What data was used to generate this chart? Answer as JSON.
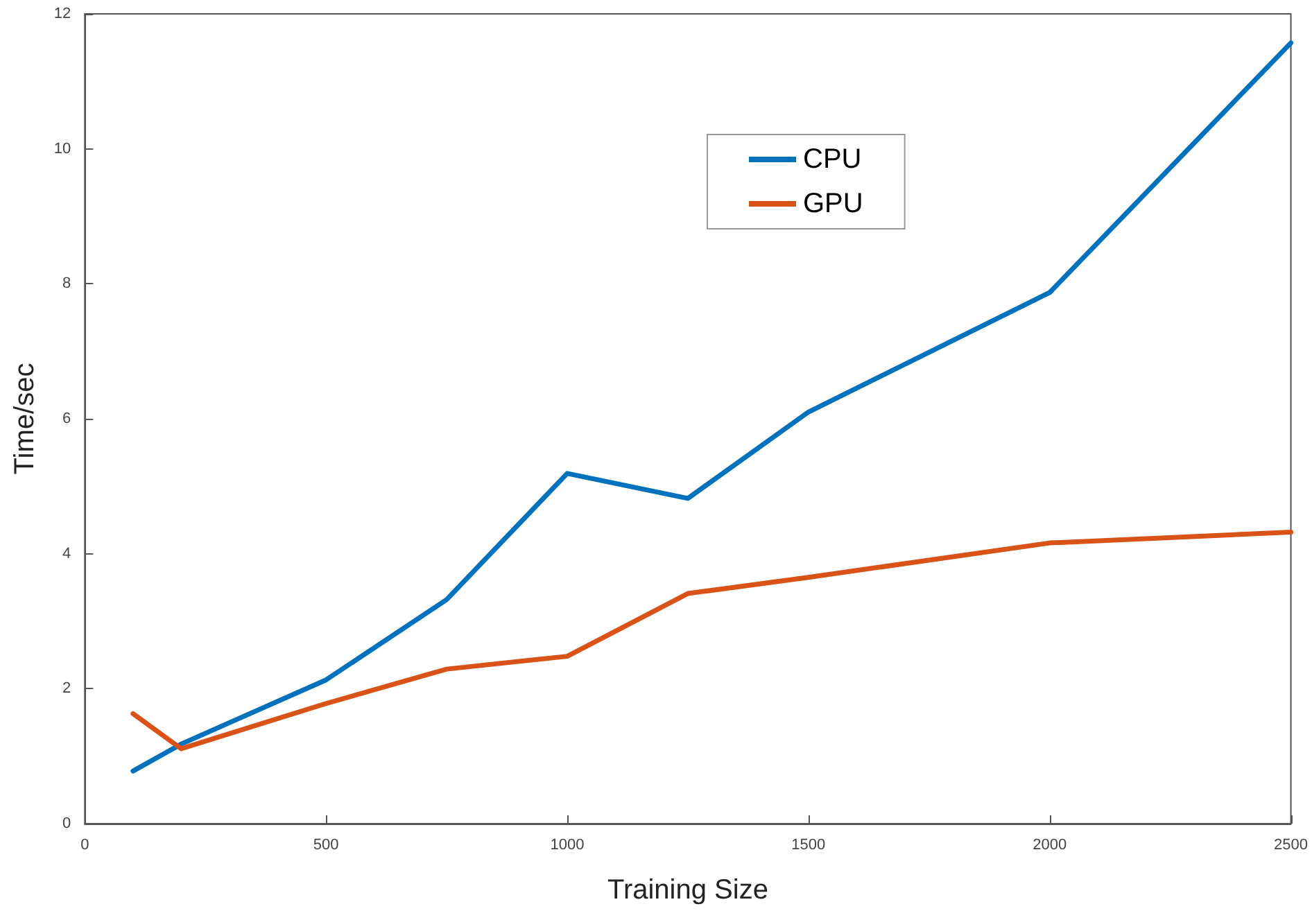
{
  "chart_data": {
    "type": "line",
    "xlabel": "Training Size",
    "ylabel": "Time/sec",
    "x": [
      100,
      200,
      500,
      750,
      1000,
      1250,
      1500,
      2000,
      2500
    ],
    "series": [
      {
        "name": "CPU",
        "color": "#0072bd",
        "values": [
          0.78,
          1.18,
          2.13,
          3.32,
          5.19,
          4.82,
          6.1,
          7.87,
          11.57
        ]
      },
      {
        "name": "GPU",
        "color": "#d95319",
        "values": [
          1.63,
          1.11,
          1.78,
          2.29,
          2.48,
          3.41,
          3.65,
          4.16,
          4.32
        ]
      }
    ],
    "xlim": [
      0,
      2500
    ],
    "xticks": [
      0,
      500,
      1000,
      1500,
      2000,
      2500
    ],
    "ylim": [
      0,
      12
    ],
    "yticks": [
      0,
      2,
      4,
      6,
      8,
      10,
      12
    ],
    "grid": false,
    "legend": "top right",
    "marker": "none",
    "line_style": "solid"
  }
}
